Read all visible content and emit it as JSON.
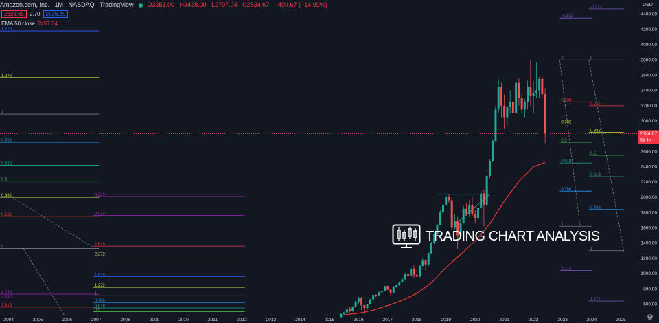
{
  "header": {
    "symbol": "Amazon.com, Inc.",
    "interval": "1M",
    "exchange": "NASDAQ",
    "source": "TradingView",
    "open": "O3351.00",
    "high": "H3428.00",
    "low": "L2707.04",
    "close": "C2834.67",
    "change": "−499.67 (−14.99%)"
  },
  "prices": {
    "bid": "2833.65",
    "spread": "2.70",
    "ask": "2836.35"
  },
  "ema": {
    "label": "EMA 50 close",
    "value": "2457.34"
  },
  "currency": "USD",
  "last_price": {
    "value": "2834.67",
    "countdown": "5d 4h"
  },
  "watermark": "TRADING CHART ANALYSIS",
  "colors": {
    "background": "#131722",
    "up": "#26a69a",
    "down": "#ef5350",
    "ema": "#e53935",
    "text": "#d1d4dc"
  },
  "chart_data": {
    "type": "candlestick",
    "y_axis": {
      "ticks": [
        600,
        800,
        1000,
        1200,
        1400,
        1600,
        1800,
        2000,
        2200,
        2400,
        2600,
        2800,
        3000,
        3200,
        3400,
        3600,
        3800,
        4000,
        4200,
        4400
      ],
      "tick_labels": [
        "600.00",
        "800.00",
        "1000.00",
        "1200.00",
        "1400.00",
        "1600.00",
        "1800.00",
        "2000.00",
        "2200.00",
        "2400.00",
        "2600.00",
        "2800.00",
        "3000.00",
        "3200.00",
        "3400.00",
        "3600.00",
        "3800.00",
        "4000.00",
        "4200.00",
        "4400.00"
      ],
      "range": [
        460,
        4550
      ]
    },
    "x_axis": {
      "tick_labels": [
        "2004",
        "2005",
        "2006",
        "2007",
        "2008",
        "2009",
        "2010",
        "2011",
        "2012",
        "2013",
        "2014",
        "2015",
        "2016",
        "2017",
        "2018",
        "2019",
        "2020",
        "2021",
        "2022",
        "2023",
        "2024",
        "2025"
      ],
      "range": [
        2003.7,
        2025.6
      ]
    },
    "candles": [
      {
        "t": 2015.4,
        "o": 430,
        "h": 480,
        "l": 415,
        "c": 470
      },
      {
        "t": 2015.5,
        "o": 470,
        "h": 500,
        "l": 455,
        "c": 490
      },
      {
        "t": 2015.6,
        "o": 490,
        "h": 545,
        "l": 480,
        "c": 535
      },
      {
        "t": 2015.7,
        "o": 535,
        "h": 560,
        "l": 490,
        "c": 510
      },
      {
        "t": 2015.8,
        "o": 510,
        "h": 570,
        "l": 500,
        "c": 560
      },
      {
        "t": 2015.9,
        "o": 560,
        "h": 660,
        "l": 555,
        "c": 630
      },
      {
        "t": 2016.0,
        "o": 630,
        "h": 695,
        "l": 600,
        "c": 675
      },
      {
        "t": 2016.1,
        "o": 675,
        "h": 695,
        "l": 520,
        "c": 585
      },
      {
        "t": 2016.2,
        "o": 585,
        "h": 590,
        "l": 475,
        "c": 550
      },
      {
        "t": 2016.3,
        "o": 550,
        "h": 600,
        "l": 520,
        "c": 595
      },
      {
        "t": 2016.4,
        "o": 595,
        "h": 670,
        "l": 590,
        "c": 660
      },
      {
        "t": 2016.5,
        "o": 660,
        "h": 725,
        "l": 650,
        "c": 720
      },
      {
        "t": 2016.6,
        "o": 720,
        "h": 730,
        "l": 690,
        "c": 715
      },
      {
        "t": 2016.7,
        "o": 715,
        "h": 770,
        "l": 710,
        "c": 755
      },
      {
        "t": 2016.8,
        "o": 755,
        "h": 775,
        "l": 745,
        "c": 770
      },
      {
        "t": 2016.9,
        "o": 770,
        "h": 840,
        "l": 765,
        "c": 835
      },
      {
        "t": 2017.0,
        "o": 835,
        "h": 845,
        "l": 780,
        "c": 790
      },
      {
        "t": 2017.1,
        "o": 790,
        "h": 800,
        "l": 710,
        "c": 750
      },
      {
        "t": 2017.2,
        "o": 750,
        "h": 840,
        "l": 745,
        "c": 825
      },
      {
        "t": 2017.3,
        "o": 825,
        "h": 860,
        "l": 820,
        "c": 845
      },
      {
        "t": 2017.4,
        "o": 845,
        "h": 890,
        "l": 840,
        "c": 885
      },
      {
        "t": 2017.5,
        "o": 885,
        "h": 950,
        "l": 880,
        "c": 925
      },
      {
        "t": 2017.6,
        "o": 925,
        "h": 1010,
        "l": 915,
        "c": 995
      },
      {
        "t": 2017.7,
        "o": 995,
        "h": 1020,
        "l": 950,
        "c": 970
      },
      {
        "t": 2017.8,
        "o": 970,
        "h": 1090,
        "l": 940,
        "c": 1060
      },
      {
        "t": 2017.9,
        "o": 1060,
        "h": 1105,
        "l": 945,
        "c": 985
      },
      {
        "t": 2018.0,
        "o": 985,
        "h": 1060,
        "l": 955,
        "c": 960
      },
      {
        "t": 2018.1,
        "o": 960,
        "h": 1110,
        "l": 950,
        "c": 1100
      },
      {
        "t": 2018.2,
        "o": 1100,
        "h": 1200,
        "l": 1095,
        "c": 1170
      },
      {
        "t": 2018.3,
        "o": 1170,
        "h": 1190,
        "l": 1040,
        "c": 1120
      },
      {
        "t": 2018.4,
        "o": 1120,
        "h": 1280,
        "l": 1100,
        "c": 1265
      },
      {
        "t": 2018.5,
        "o": 1265,
        "h": 1420,
        "l": 1260,
        "c": 1400
      },
      {
        "t": 2018.6,
        "o": 1400,
        "h": 1540,
        "l": 1380,
        "c": 1520
      },
      {
        "t": 2018.7,
        "o": 1520,
        "h": 1650,
        "l": 1500,
        "c": 1640
      },
      {
        "t": 2018.8,
        "o": 1640,
        "h": 1840,
        "l": 1635,
        "c": 1800
      },
      {
        "t": 2018.9,
        "o": 1800,
        "h": 1950,
        "l": 1780,
        "c": 1900
      },
      {
        "t": 2019.0,
        "o": 1900,
        "h": 2050,
        "l": 1880,
        "c": 2010
      },
      {
        "t": 2019.1,
        "o": 2010,
        "h": 2040,
        "l": 1920,
        "c": 1960
      },
      {
        "t": 2019.2,
        "o": 1960,
        "h": 2010,
        "l": 1570,
        "c": 1600
      },
      {
        "t": 2019.3,
        "o": 1600,
        "h": 1780,
        "l": 1580,
        "c": 1690
      },
      {
        "t": 2019.4,
        "o": 1690,
        "h": 1740,
        "l": 1320,
        "c": 1500
      },
      {
        "t": 2019.5,
        "o": 1500,
        "h": 1700,
        "l": 1450,
        "c": 1660
      },
      {
        "t": 2019.6,
        "o": 1660,
        "h": 1890,
        "l": 1660,
        "c": 1850
      },
      {
        "t": 2019.7,
        "o": 1850,
        "h": 1920,
        "l": 1750,
        "c": 1780
      },
      {
        "t": 2019.8,
        "o": 1780,
        "h": 1960,
        "l": 1740,
        "c": 1900
      },
      {
        "t": 2019.9,
        "o": 1900,
        "h": 2010,
        "l": 1750,
        "c": 1780
      },
      {
        "t": 2020.0,
        "o": 1780,
        "h": 1830,
        "l": 1660,
        "c": 1730
      },
      {
        "t": 2020.1,
        "o": 1730,
        "h": 1900,
        "l": 1690,
        "c": 1860
      },
      {
        "t": 2020.2,
        "o": 1860,
        "h": 2100,
        "l": 1630,
        "c": 2050
      },
      {
        "t": 2020.3,
        "o": 2050,
        "h": 2100,
        "l": 1620,
        "c": 1900
      },
      {
        "t": 2020.4,
        "o": 1900,
        "h": 2300,
        "l": 1890,
        "c": 2280
      },
      {
        "t": 2020.5,
        "o": 2280,
        "h": 2500,
        "l": 2250,
        "c": 2470
      },
      {
        "t": 2020.6,
        "o": 2470,
        "h": 2760,
        "l": 2460,
        "c": 2740
      },
      {
        "t": 2020.7,
        "o": 2740,
        "h": 3200,
        "l": 2730,
        "c": 3150
      },
      {
        "t": 2020.8,
        "o": 3150,
        "h": 3550,
        "l": 3100,
        "c": 3450
      },
      {
        "t": 2020.9,
        "o": 3450,
        "h": 3500,
        "l": 3050,
        "c": 3200
      },
      {
        "t": 2021.0,
        "o": 3200,
        "h": 3350,
        "l": 2900,
        "c": 3050
      },
      {
        "t": 2021.1,
        "o": 3050,
        "h": 3200,
        "l": 2950,
        "c": 3180
      },
      {
        "t": 2021.2,
        "o": 3180,
        "h": 3400,
        "l": 3100,
        "c": 3250
      },
      {
        "t": 2021.3,
        "o": 3250,
        "h": 3300,
        "l": 3050,
        "c": 3100
      },
      {
        "t": 2021.4,
        "o": 3100,
        "h": 3550,
        "l": 3090,
        "c": 3500
      },
      {
        "t": 2021.5,
        "o": 3500,
        "h": 3560,
        "l": 3200,
        "c": 3300
      },
      {
        "t": 2021.6,
        "o": 3300,
        "h": 3350,
        "l": 3100,
        "c": 3150
      },
      {
        "t": 2021.7,
        "o": 3150,
        "h": 3290,
        "l": 3050,
        "c": 3250
      },
      {
        "t": 2021.8,
        "o": 3250,
        "h": 3530,
        "l": 3150,
        "c": 3450
      },
      {
        "t": 2021.9,
        "o": 3450,
        "h": 3800,
        "l": 3200,
        "c": 3330
      },
      {
        "t": 2022.0,
        "o": 3330,
        "h": 3520,
        "l": 3100,
        "c": 3370
      },
      {
        "t": 2022.1,
        "o": 3370,
        "h": 3773,
        "l": 3300,
        "c": 3400
      },
      {
        "t": 2022.2,
        "o": 3400,
        "h": 3580,
        "l": 3300,
        "c": 3550
      },
      {
        "t": 2022.3,
        "o": 3551,
        "h": 3590,
        "l": 3300,
        "c": 3351
      },
      {
        "t": 2022.4,
        "o": 3351,
        "h": 3428,
        "l": 2707,
        "c": 2834.67
      }
    ],
    "ema50": [
      {
        "t": 2015.5,
        "v": 460
      },
      {
        "t": 2016.0,
        "v": 480
      },
      {
        "t": 2016.5,
        "v": 520
      },
      {
        "t": 2017.0,
        "v": 580
      },
      {
        "t": 2017.5,
        "v": 650
      },
      {
        "t": 2018.0,
        "v": 740
      },
      {
        "t": 2018.5,
        "v": 880
      },
      {
        "t": 2019.0,
        "v": 1080
      },
      {
        "t": 2019.5,
        "v": 1250
      },
      {
        "t": 2020.0,
        "v": 1430
      },
      {
        "t": 2020.5,
        "v": 1650
      },
      {
        "t": 2021.0,
        "v": 1950
      },
      {
        "t": 2021.5,
        "v": 2210
      },
      {
        "t": 2022.0,
        "v": 2400
      },
      {
        "t": 2022.4,
        "v": 2457.34
      }
    ],
    "fib_sets": [
      {
        "t1": 2003.7,
        "t2": 2007.1,
        "levels": [
          {
            "label": "1.618",
            "v": 4180,
            "color": "#2962ff"
          },
          {
            "label": "1.272",
            "v": 3570,
            "color": "#c6e544"
          },
          {
            "label": "1",
            "v": 3090,
            "color": "#787b86"
          },
          {
            "label": "0.786",
            "v": 2720,
            "color": "#2196f3"
          },
          {
            "label": "0.618",
            "v": 2420,
            "color": "#26a69a"
          },
          {
            "label": "0.5",
            "v": 2210,
            "color": "#4caf50"
          },
          {
            "label": "0.382",
            "v": 2000,
            "color": "#c6e544"
          },
          {
            "label": "0.236",
            "v": 1750,
            "color": "#f23645"
          },
          {
            "label": "0",
            "v": 1330,
            "color": "#787b86"
          }
        ]
      },
      {
        "t1": 2006.9,
        "t2": 2012.1,
        "levels": [
          {
            "label": "4.236",
            "v": 2010,
            "color": "#9c27b0"
          },
          {
            "label": "3.618",
            "v": 1760,
            "color": "#9c27b0"
          },
          {
            "label": "2.618",
            "v": 1360,
            "color": "#f23645"
          },
          {
            "label": "2.272",
            "v": 1230,
            "color": "#c6e544"
          },
          {
            "label": "1.618",
            "v": 960,
            "color": "#2962ff"
          },
          {
            "label": "1.272",
            "v": 820,
            "color": "#c6e544"
          },
          {
            "label": "1",
            "v": 710,
            "color": "#787b86"
          },
          {
            "label": "0.786",
            "v": 620,
            "color": "#2196f3"
          },
          {
            "label": "0.618",
            "v": 550,
            "color": "#26a69a"
          },
          {
            "label": "0.5",
            "v": 500,
            "color": "#4caf50"
          }
        ]
      },
      {
        "t1": 2003.7,
        "t2": 2007.1,
        "levels": [
          {
            "label": "4.236",
            "v": 730,
            "color": "#9c27b0"
          },
          {
            "label": "3.618",
            "v": 680,
            "color": "#9c27b0"
          },
          {
            "label": "2.618",
            "v": 560,
            "color": "#f23645"
          }
        ]
      },
      {
        "t1": 2022.9,
        "t2": 2024.0,
        "levels": [
          {
            "label": "-0.272",
            "v": 4350,
            "color": "#7e57c2"
          },
          {
            "label": "0",
            "v": 3800,
            "color": "#787b86"
          },
          {
            "label": "0.236",
            "v": 3250,
            "color": "#f23645"
          },
          {
            "label": "0.382",
            "v": 2960,
            "color": "#c6e544"
          },
          {
            "label": "0.5",
            "v": 2720,
            "color": "#4caf50"
          },
          {
            "label": "0.618",
            "v": 2450,
            "color": "#26a69a"
          },
          {
            "label": "0.786",
            "v": 2080,
            "color": "#2196f3"
          },
          {
            "label": "1",
            "v": 1620,
            "color": "#787b86"
          },
          {
            "label": "1.272",
            "v": 1040,
            "color": "#7e57c2"
          }
        ]
      },
      {
        "t1": 2023.9,
        "t2": 2025.1,
        "levels": [
          {
            "label": "-0.272",
            "v": 4470,
            "color": "#7e57c2"
          },
          {
            "label": "0",
            "v": 3800,
            "color": "#787b86"
          },
          {
            "label": "0.236",
            "v": 3200,
            "color": "#f23645"
          },
          {
            "label": "0.382",
            "v": 2850,
            "color": "#c6e544"
          },
          {
            "label": "0.5",
            "v": 2550,
            "color": "#4caf50"
          },
          {
            "label": "0.618",
            "v": 2270,
            "color": "#26a69a"
          },
          {
            "label": "0.786",
            "v": 1840,
            "color": "#2196f3"
          },
          {
            "label": "1",
            "v": 1300,
            "color": "#787b86"
          },
          {
            "label": "1.272",
            "v": 640,
            "color": "#7e57c2"
          }
        ]
      }
    ],
    "trendlines": [
      {
        "t1": 2003.9,
        "v1": 2050,
        "t2": 2006.9,
        "v2": 1340,
        "color": "#787b86",
        "dash": true
      },
      {
        "t1": 2004.5,
        "v1": 1330,
        "t2": 2005.9,
        "v2": 460,
        "color": "#787b86",
        "dash": true
      },
      {
        "t1": 2022.9,
        "v1": 3800,
        "t2": 2023.6,
        "v2": 1620,
        "color": "#787b86",
        "dash": true
      },
      {
        "t1": 2023.9,
        "v1": 3800,
        "t2": 2025.1,
        "v2": 1300,
        "color": "#787b86",
        "dash": true
      },
      {
        "t1": 2018.7,
        "v1": 2040,
        "t2": 2020.5,
        "v2": 2040,
        "color": "#26a69a",
        "dash": false
      },
      {
        "t1": 2019.3,
        "v1": 1640,
        "t2": 2020.5,
        "v2": 2040,
        "color": "#26a69a",
        "dash": false
      }
    ]
  }
}
